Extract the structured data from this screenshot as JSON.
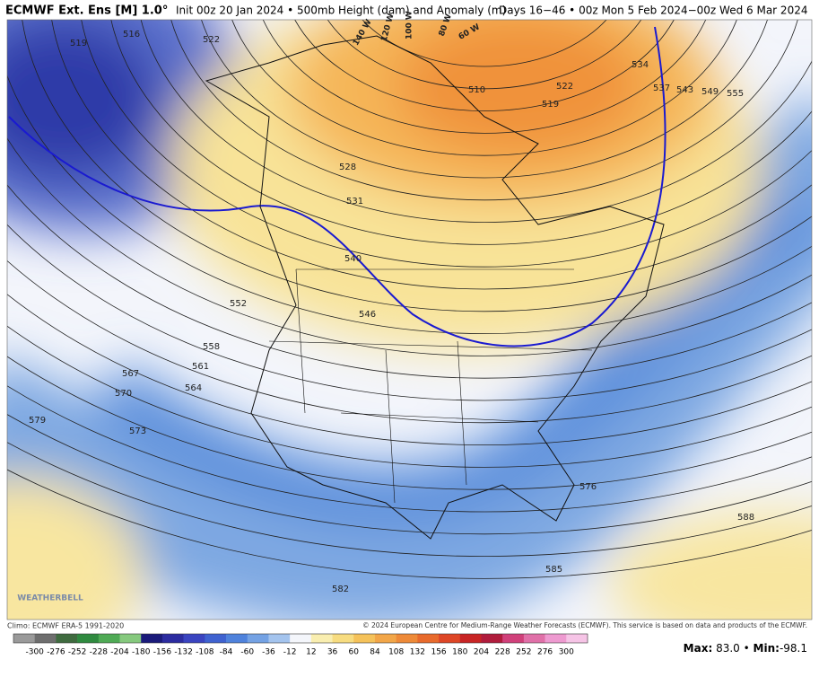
{
  "header": {
    "title": "ECMWF Ext. Ens [M] 1.0°",
    "init": "Init 00z 20 Jan 2024 • 500mb Height (dam) and Anomaly (m)",
    "valid": "Days 16−46 • 00z Mon 5 Feb 2024−00z Wed 6 Mar 2024"
  },
  "map": {
    "contour_labels": [
      "519",
      "516",
      "522",
      "528",
      "531",
      "540",
      "546",
      "552",
      "558",
      "561",
      "564",
      "567",
      "570",
      "573",
      "579",
      "582",
      "585",
      "588",
      "576",
      "534",
      "537",
      "543",
      "549",
      "555",
      "510",
      "519",
      "522"
    ],
    "longitude_labels": [
      "140 W",
      "120 W",
      "100 W",
      "80 W",
      "60 W"
    ],
    "logo": "WEATHERBELL"
  },
  "footer": {
    "climo": "Climo: ECMWF ERA-5 1991-2020",
    "copyright": "© 2024 European Centre for Medium-Range Weather Forecasts (ECMWF). This service is based on data and products of the ECMWF."
  },
  "colorbar": {
    "ticks": [
      -300,
      -276,
      -252,
      -228,
      -204,
      -180,
      -156,
      -132,
      -108,
      -84,
      -60,
      -36,
      -12,
      12,
      36,
      60,
      84,
      108,
      132,
      156,
      180,
      204,
      228,
      252,
      276,
      300
    ],
    "colors": [
      "#9a9a9a",
      "#6e6e6e",
      "#3f6b3f",
      "#2f8a3f",
      "#4faa55",
      "#86c97e",
      "#1a1a7a",
      "#2c2ca0",
      "#3a44c0",
      "#3f62d0",
      "#4f82dc",
      "#74a2e4",
      "#a4c4ee",
      "#f4f6fb",
      "#f9eeb0",
      "#f7dc80",
      "#f5c25a",
      "#f2a648",
      "#ee8a38",
      "#e86a2c",
      "#de4626",
      "#c82424",
      "#b01c3c",
      "#d0407a",
      "#e070a8",
      "#ee9ad0",
      "#f6c4e6"
    ]
  },
  "stats": {
    "max_label": "Max:",
    "max": "83.0",
    "sep": "•",
    "min_label": "Min:",
    "min": "-98.1"
  }
}
